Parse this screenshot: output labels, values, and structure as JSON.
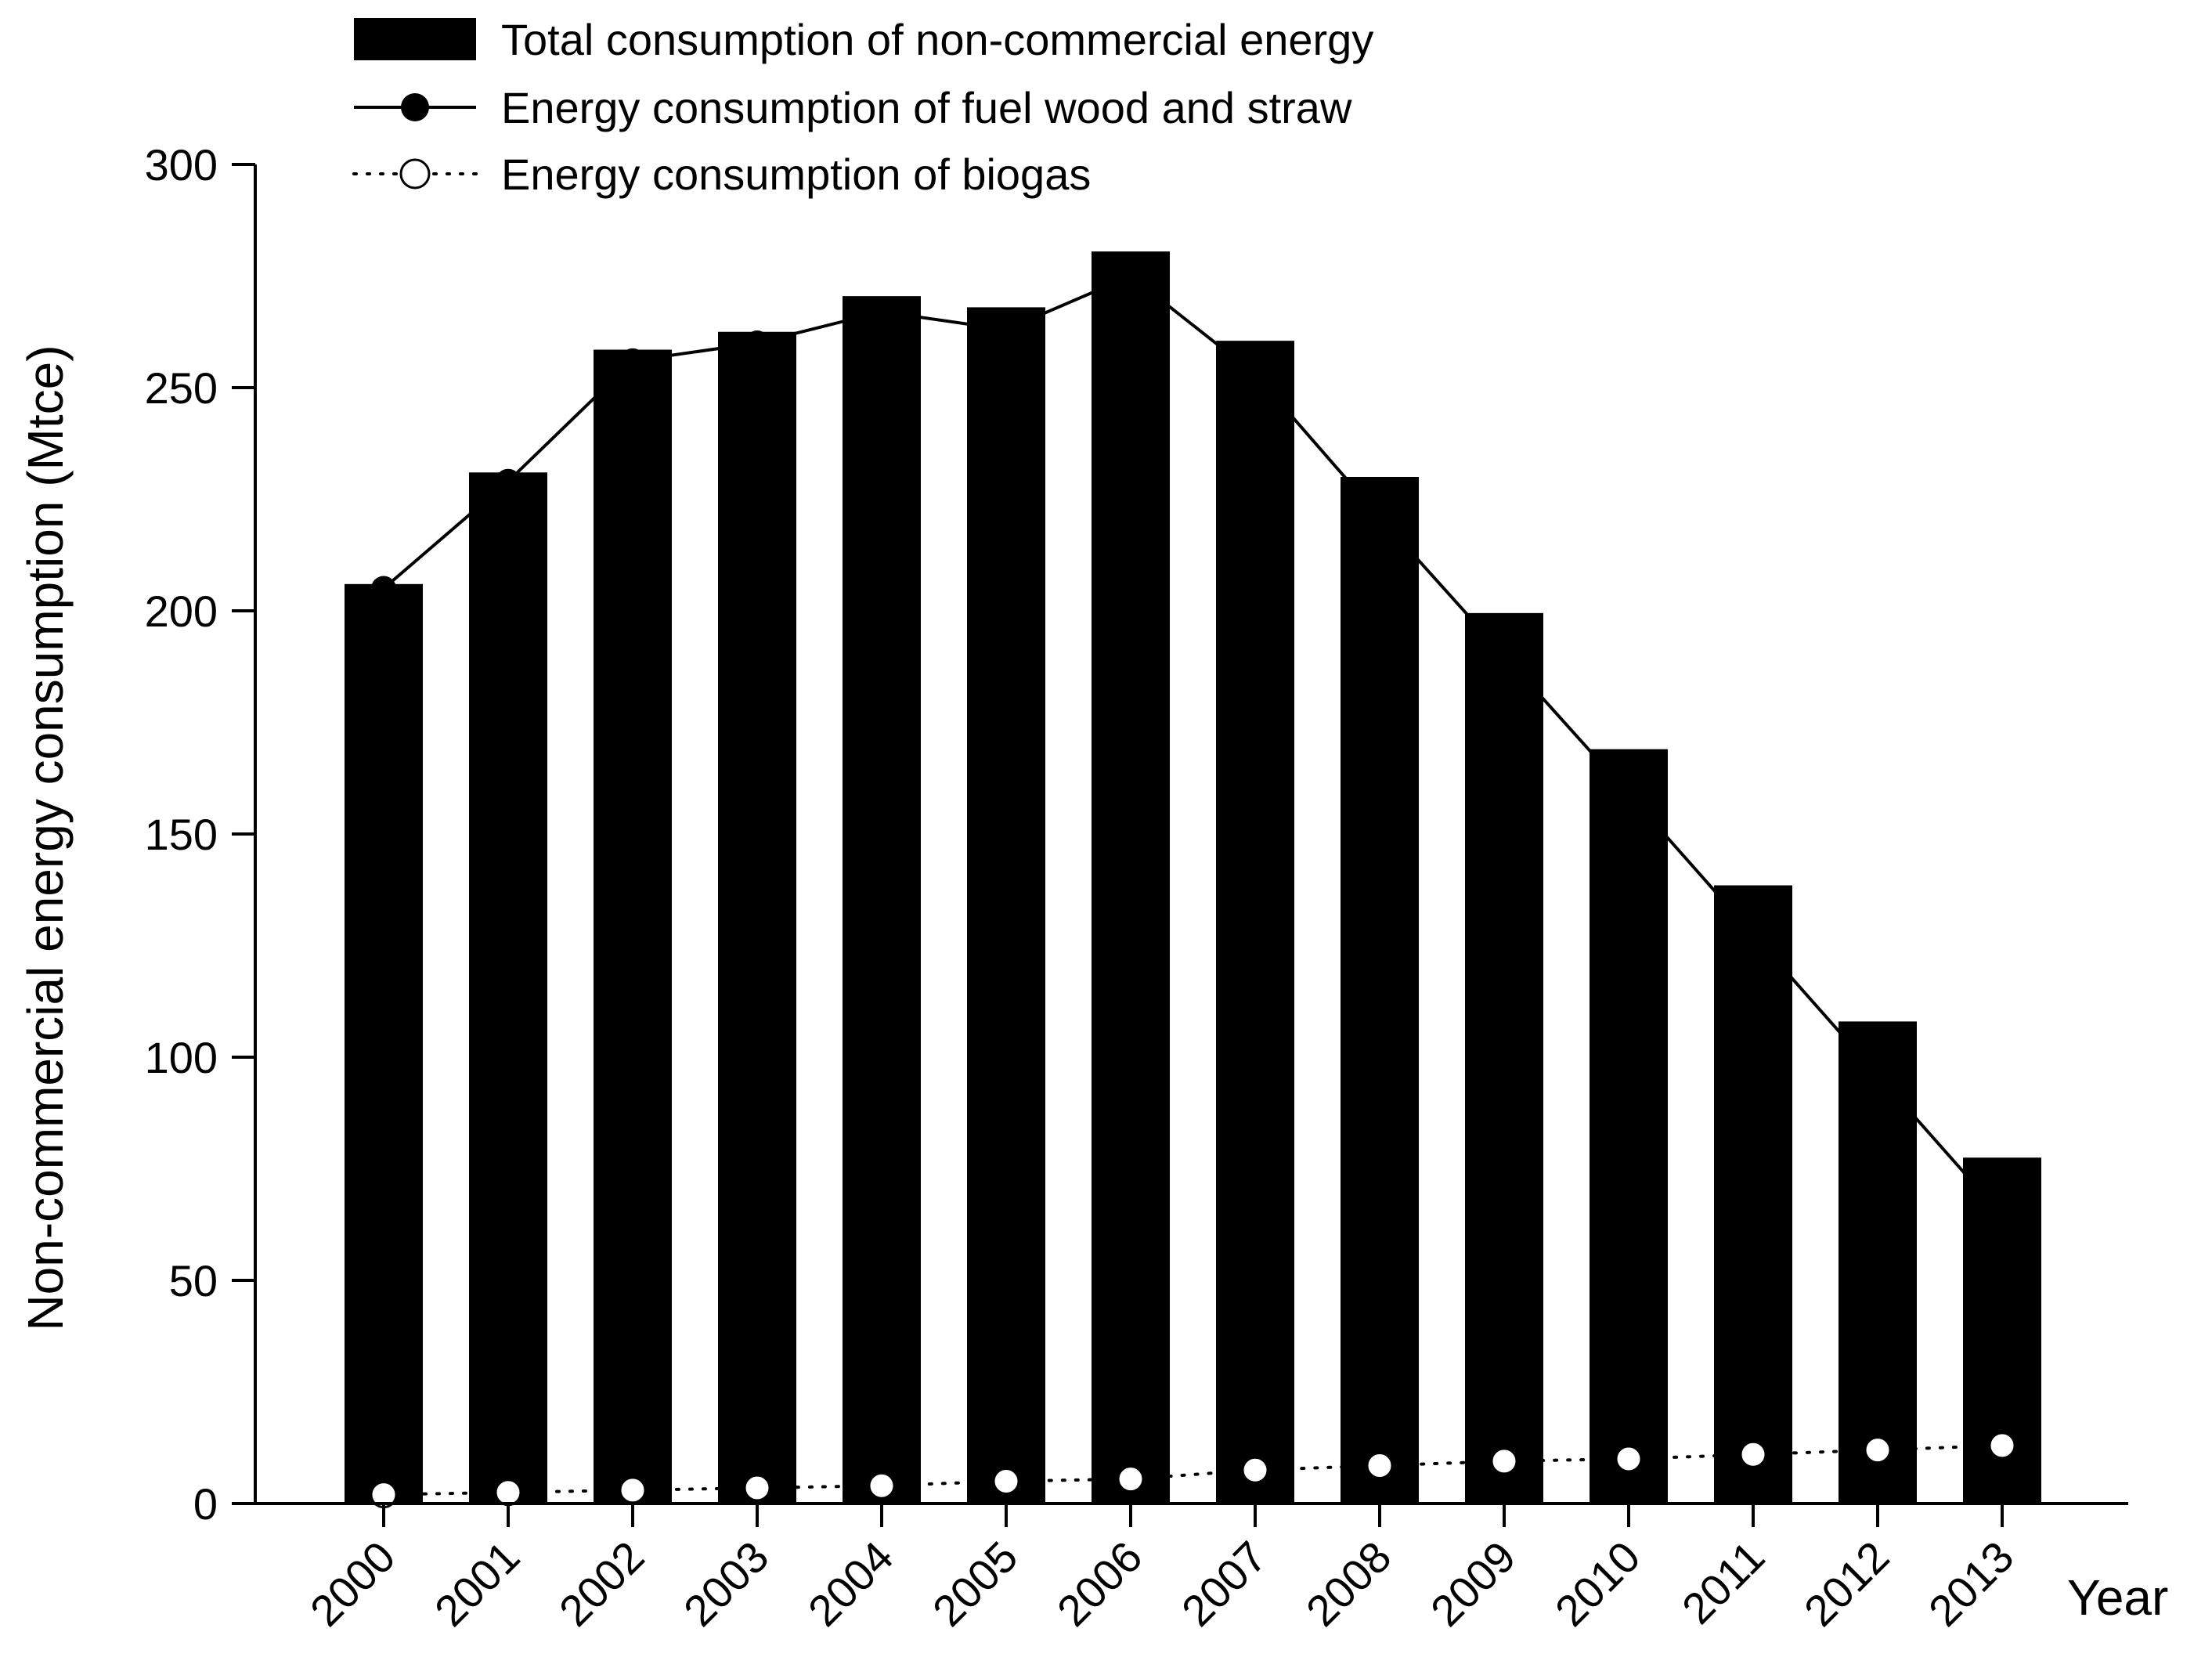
{
  "chart_data": {
    "type": "bar",
    "title": "",
    "xlabel": "Year",
    "ylabel": "Non-commercial energy consumption (Mtce)",
    "ylim": [
      0,
      300
    ],
    "yticks": [
      0,
      50,
      100,
      150,
      200,
      250,
      300
    ],
    "grid": false,
    "legend_position": "top",
    "categories": [
      "2000",
      "2001",
      "2002",
      "2003",
      "2004",
      "2005",
      "2006",
      "2007",
      "2008",
      "2009",
      "2010",
      "2011",
      "2012",
      "2013"
    ],
    "series": [
      {
        "name": "Total consumption of non-commercial energy",
        "kind": "bar",
        "color": "#000000",
        "values": [
          206,
          231,
          258.5,
          262.5,
          270.5,
          268,
          280.5,
          260.5,
          230,
          199.5,
          169,
          138.5,
          108,
          77.5
        ]
      },
      {
        "name": "Energy consumption of fuel wood and straw",
        "kind": "line",
        "line_style": "solid",
        "marker": "filled-circle",
        "color": "#000000",
        "values": [
          205,
          229,
          256,
          260,
          267,
          263,
          275,
          253,
          221,
          190,
          159,
          127.5,
          96,
          64.5
        ]
      },
      {
        "name": "Energy consumption of biogas",
        "kind": "line",
        "line_style": "dotted",
        "marker": "open-circle",
        "color": "#000000",
        "values": [
          2,
          2.5,
          3,
          3.5,
          4,
          5,
          5.5,
          7.5,
          8.5,
          9.5,
          10,
          11,
          12,
          13
        ]
      }
    ]
  }
}
